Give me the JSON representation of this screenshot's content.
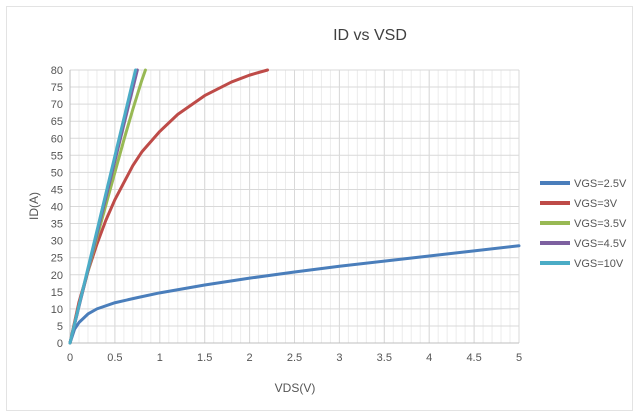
{
  "chart_data": {
    "type": "line",
    "title": "ID vs VSD",
    "xlabel": "VDS(V)",
    "ylabel": "ID(A)",
    "xlim": [
      0,
      5
    ],
    "ylim": [
      0,
      80
    ],
    "xticks": [
      "0",
      "0.5",
      "1",
      "1.5",
      "2",
      "2.5",
      "3",
      "3.5",
      "4",
      "4.5",
      "5"
    ],
    "yticks": [
      "0",
      "5",
      "10",
      "15",
      "20",
      "25",
      "30",
      "35",
      "40",
      "45",
      "50",
      "55",
      "60",
      "65",
      "70",
      "75",
      "80"
    ],
    "grid": true,
    "legend_position": "right",
    "series": [
      {
        "name": "VGS=2.5V",
        "color": "#4a7ebb",
        "x": [
          0,
          0.05,
          0.1,
          0.2,
          0.3,
          0.5,
          0.75,
          1.0,
          1.5,
          2.0,
          2.5,
          3.0,
          3.5,
          4.0,
          4.5,
          5.0
        ],
        "y": [
          0,
          4,
          6,
          8.5,
          10,
          11.8,
          13.3,
          14.7,
          17,
          19,
          20.8,
          22.5,
          24,
          25.5,
          27,
          28.5
        ]
      },
      {
        "name": "VGS=3V",
        "color": "#be4b48",
        "x": [
          0,
          0.1,
          0.2,
          0.3,
          0.4,
          0.5,
          0.6,
          0.7,
          0.8,
          0.9,
          1.0,
          1.2,
          1.5,
          1.8,
          2.0,
          2.2
        ],
        "y": [
          0,
          12,
          21,
          29,
          36,
          42,
          47,
          52,
          56,
          59,
          62,
          67,
          72.5,
          76.5,
          78.5,
          80
        ]
      },
      {
        "name": "VGS=3.5V",
        "color": "#98b954",
        "x": [
          0,
          0.1,
          0.2,
          0.3,
          0.4,
          0.5,
          0.6,
          0.7,
          0.8,
          0.84
        ],
        "y": [
          0,
          11,
          21,
          31,
          40.5,
          50,
          59.5,
          68.5,
          77,
          80
        ]
      },
      {
        "name": "VGS=4.5V",
        "color": "#7d60a0",
        "x": [
          0,
          0.75
        ],
        "y": [
          0,
          80
        ]
      },
      {
        "name": "VGS=10V",
        "color": "#4bacc6",
        "x": [
          0,
          0.73
        ],
        "y": [
          0,
          80
        ]
      }
    ]
  }
}
